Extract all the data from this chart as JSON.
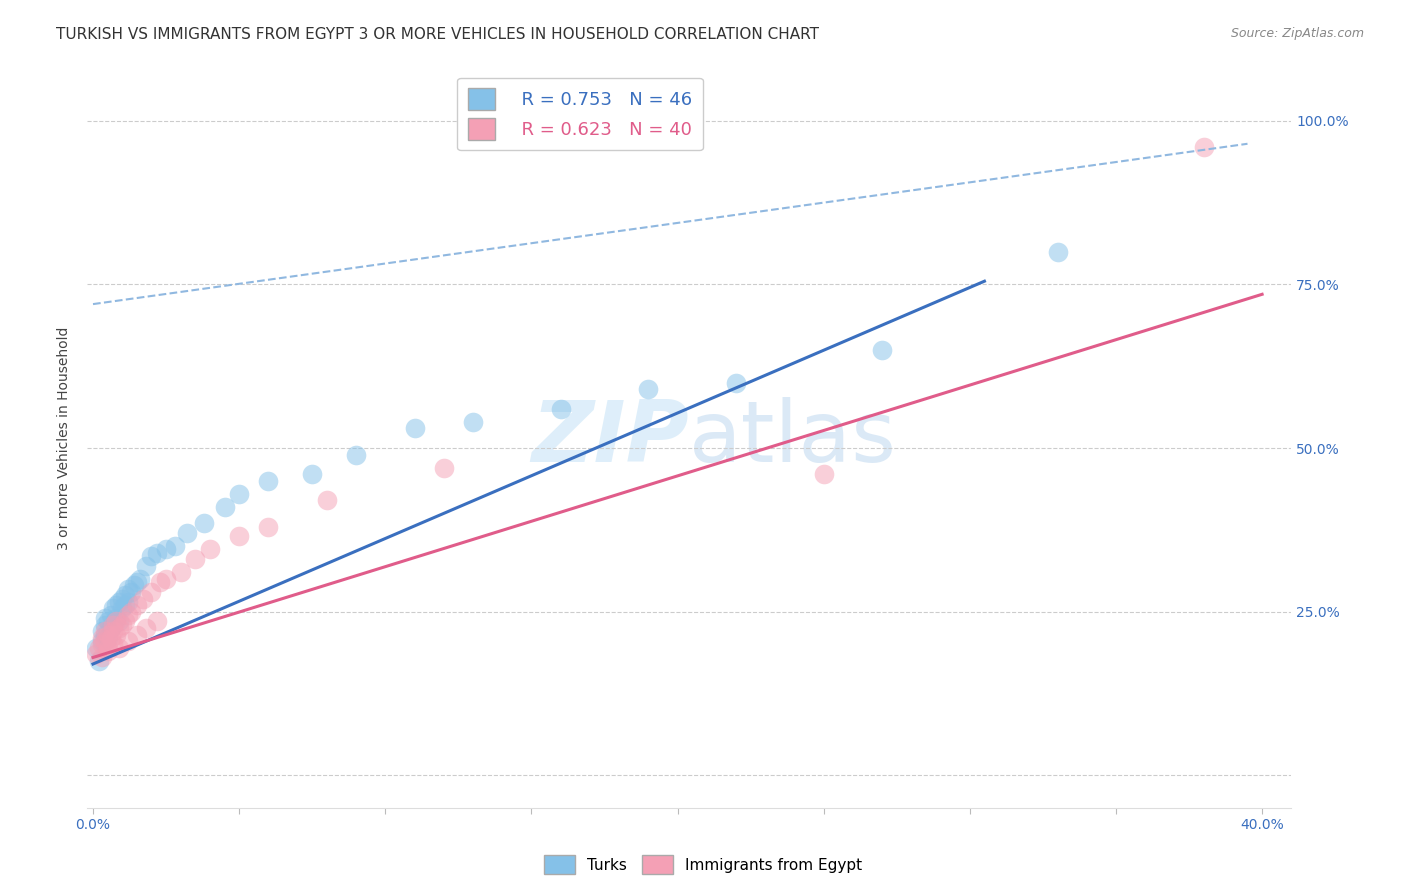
{
  "title": "TURKISH VS IMMIGRANTS FROM EGYPT 3 OR MORE VEHICLES IN HOUSEHOLD CORRELATION CHART",
  "source": "Source: ZipAtlas.com",
  "ylabel": "3 or more Vehicles in Household",
  "xlim": [
    -0.002,
    0.41
  ],
  "ylim": [
    -0.05,
    1.08
  ],
  "xticks": [
    0.0,
    0.05,
    0.1,
    0.15,
    0.2,
    0.25,
    0.3,
    0.35,
    0.4
  ],
  "yticks": [
    0.0,
    0.25,
    0.5,
    0.75,
    1.0
  ],
  "yticklabels_right": [
    "",
    "25.0%",
    "50.0%",
    "75.0%",
    "100.0%"
  ],
  "watermark": "ZIPatlas",
  "legend_blue_r": "R = 0.753",
  "legend_blue_n": "N = 46",
  "legend_pink_r": "R = 0.623",
  "legend_pink_n": "N = 40",
  "blue_color": "#85c1e8",
  "pink_color": "#f4a0b5",
  "blue_line_color": "#3a6fbf",
  "pink_line_color": "#e05c8a",
  "dashed_line_color": "#90b8e0",
  "title_fontsize": 11,
  "axis_label_fontsize": 10,
  "tick_fontsize": 10,
  "blue_scatter_x": [
    0.001,
    0.002,
    0.003,
    0.003,
    0.004,
    0.004,
    0.004,
    0.005,
    0.005,
    0.006,
    0.006,
    0.007,
    0.007,
    0.008,
    0.008,
    0.009,
    0.009,
    0.01,
    0.01,
    0.011,
    0.011,
    0.012,
    0.012,
    0.013,
    0.014,
    0.015,
    0.016,
    0.018,
    0.02,
    0.022,
    0.025,
    0.028,
    0.032,
    0.038,
    0.045,
    0.05,
    0.06,
    0.075,
    0.09,
    0.11,
    0.13,
    0.16,
    0.19,
    0.22,
    0.27,
    0.33
  ],
  "blue_scatter_y": [
    0.195,
    0.175,
    0.205,
    0.22,
    0.215,
    0.23,
    0.24,
    0.21,
    0.235,
    0.225,
    0.245,
    0.23,
    0.255,
    0.24,
    0.26,
    0.235,
    0.265,
    0.255,
    0.27,
    0.26,
    0.275,
    0.265,
    0.285,
    0.28,
    0.29,
    0.295,
    0.3,
    0.32,
    0.335,
    0.34,
    0.345,
    0.35,
    0.37,
    0.385,
    0.41,
    0.43,
    0.45,
    0.46,
    0.49,
    0.53,
    0.54,
    0.56,
    0.59,
    0.6,
    0.65,
    0.8
  ],
  "pink_scatter_x": [
    0.001,
    0.002,
    0.003,
    0.003,
    0.004,
    0.004,
    0.005,
    0.005,
    0.006,
    0.007,
    0.007,
    0.008,
    0.008,
    0.009,
    0.01,
    0.011,
    0.012,
    0.013,
    0.015,
    0.017,
    0.02,
    0.023,
    0.025,
    0.03,
    0.035,
    0.04,
    0.05,
    0.06,
    0.08,
    0.12,
    0.003,
    0.005,
    0.007,
    0.009,
    0.012,
    0.015,
    0.018,
    0.022,
    0.25,
    0.38
  ],
  "pink_scatter_y": [
    0.185,
    0.195,
    0.2,
    0.21,
    0.205,
    0.22,
    0.195,
    0.215,
    0.21,
    0.22,
    0.23,
    0.215,
    0.235,
    0.225,
    0.23,
    0.235,
    0.245,
    0.25,
    0.26,
    0.27,
    0.28,
    0.295,
    0.3,
    0.31,
    0.33,
    0.345,
    0.365,
    0.38,
    0.42,
    0.47,
    0.18,
    0.19,
    0.2,
    0.195,
    0.205,
    0.215,
    0.225,
    0.235,
    0.46,
    0.96
  ],
  "blue_line_x": [
    0.0,
    0.305
  ],
  "blue_line_y": [
    0.17,
    0.755
  ],
  "pink_line_x": [
    0.0,
    0.4
  ],
  "pink_line_y": [
    0.18,
    0.735
  ],
  "dashed_line_x": [
    0.0,
    0.395
  ],
  "dashed_line_y": [
    0.72,
    0.965
  ],
  "background_color": "#ffffff",
  "grid_color": "#cccccc"
}
